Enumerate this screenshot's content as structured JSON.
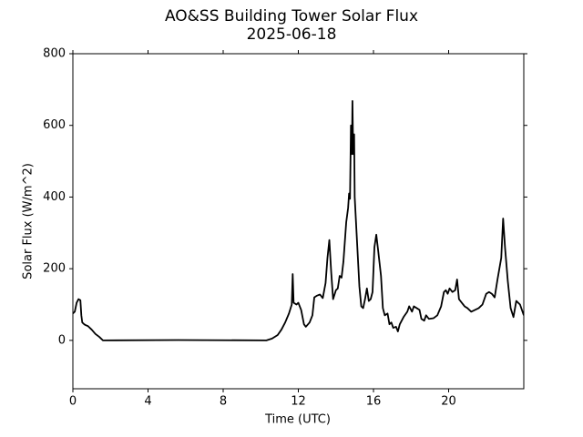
{
  "chart_data": {
    "type": "line",
    "title": "AO&SS Building Tower Solar Flux",
    "subtitle": "2025-06-18",
    "x_label": "Time (UTC)",
    "y_label": "Solar Flux (W/m^2)",
    "xlim": [
      0,
      24
    ],
    "xticks": [
      0,
      4,
      8,
      12,
      16,
      20
    ],
    "ylim": [
      -135,
      800
    ],
    "yticks": [
      0,
      200,
      400,
      600,
      800
    ],
    "grid": false,
    "series": [
      {
        "color": "#000000",
        "x": [
          0.0,
          0.1,
          0.2,
          0.3,
          0.4,
          0.45,
          0.5,
          0.6,
          0.7,
          0.8,
          1.0,
          1.2,
          1.4,
          1.6,
          5.6,
          10.3,
          10.6,
          10.9,
          11.1,
          11.3,
          11.5,
          11.65,
          11.7,
          11.75,
          11.9,
          12.0,
          12.15,
          12.3,
          12.4,
          12.6,
          12.75,
          12.85,
          13.0,
          13.15,
          13.3,
          13.45,
          13.55,
          13.65,
          13.75,
          13.85,
          14.0,
          14.1,
          14.2,
          14.3,
          14.4,
          14.55,
          14.65,
          14.7,
          14.75,
          14.8,
          14.85,
          14.88,
          14.92,
          14.97,
          15.0,
          15.1,
          15.25,
          15.35,
          15.45,
          15.55,
          15.65,
          15.75,
          15.85,
          15.95,
          16.05,
          16.15,
          16.25,
          16.4,
          16.5,
          16.6,
          16.75,
          16.85,
          16.95,
          17.05,
          17.2,
          17.3,
          17.4,
          17.6,
          17.8,
          17.9,
          18.05,
          18.15,
          18.3,
          18.45,
          18.55,
          18.7,
          18.8,
          18.95,
          19.2,
          19.4,
          19.6,
          19.75,
          19.85,
          19.95,
          20.05,
          20.2,
          20.35,
          20.45,
          20.55,
          20.7,
          20.85,
          21.0,
          21.2,
          21.4,
          21.6,
          21.8,
          22.0,
          22.15,
          22.3,
          22.45,
          22.6,
          22.8,
          22.9,
          23.0,
          23.15,
          23.3,
          23.45,
          23.6,
          23.8,
          24.0
        ],
        "values": [
          75,
          80,
          105,
          115,
          112,
          70,
          50,
          45,
          42,
          40,
          30,
          18,
          10,
          0,
          1,
          0,
          5,
          15,
          30,
          50,
          75,
          100,
          185,
          105,
          100,
          105,
          85,
          45,
          38,
          50,
          70,
          120,
          125,
          128,
          118,
          160,
          230,
          280,
          190,
          115,
          140,
          145,
          180,
          175,
          220,
          330,
          370,
          410,
          395,
          600,
          520,
          668,
          520,
          575,
          400,
          300,
          150,
          95,
          90,
          115,
          145,
          110,
          115,
          135,
          260,
          295,
          250,
          180,
          90,
          70,
          75,
          45,
          50,
          35,
          38,
          25,
          45,
          65,
          80,
          95,
          80,
          95,
          90,
          85,
          60,
          55,
          70,
          60,
          62,
          70,
          95,
          135,
          140,
          130,
          145,
          135,
          140,
          170,
          115,
          105,
          95,
          90,
          80,
          85,
          90,
          100,
          130,
          135,
          130,
          120,
          170,
          230,
          340,
          260,
          165,
          90,
          65,
          110,
          100,
          70
        ]
      }
    ]
  }
}
